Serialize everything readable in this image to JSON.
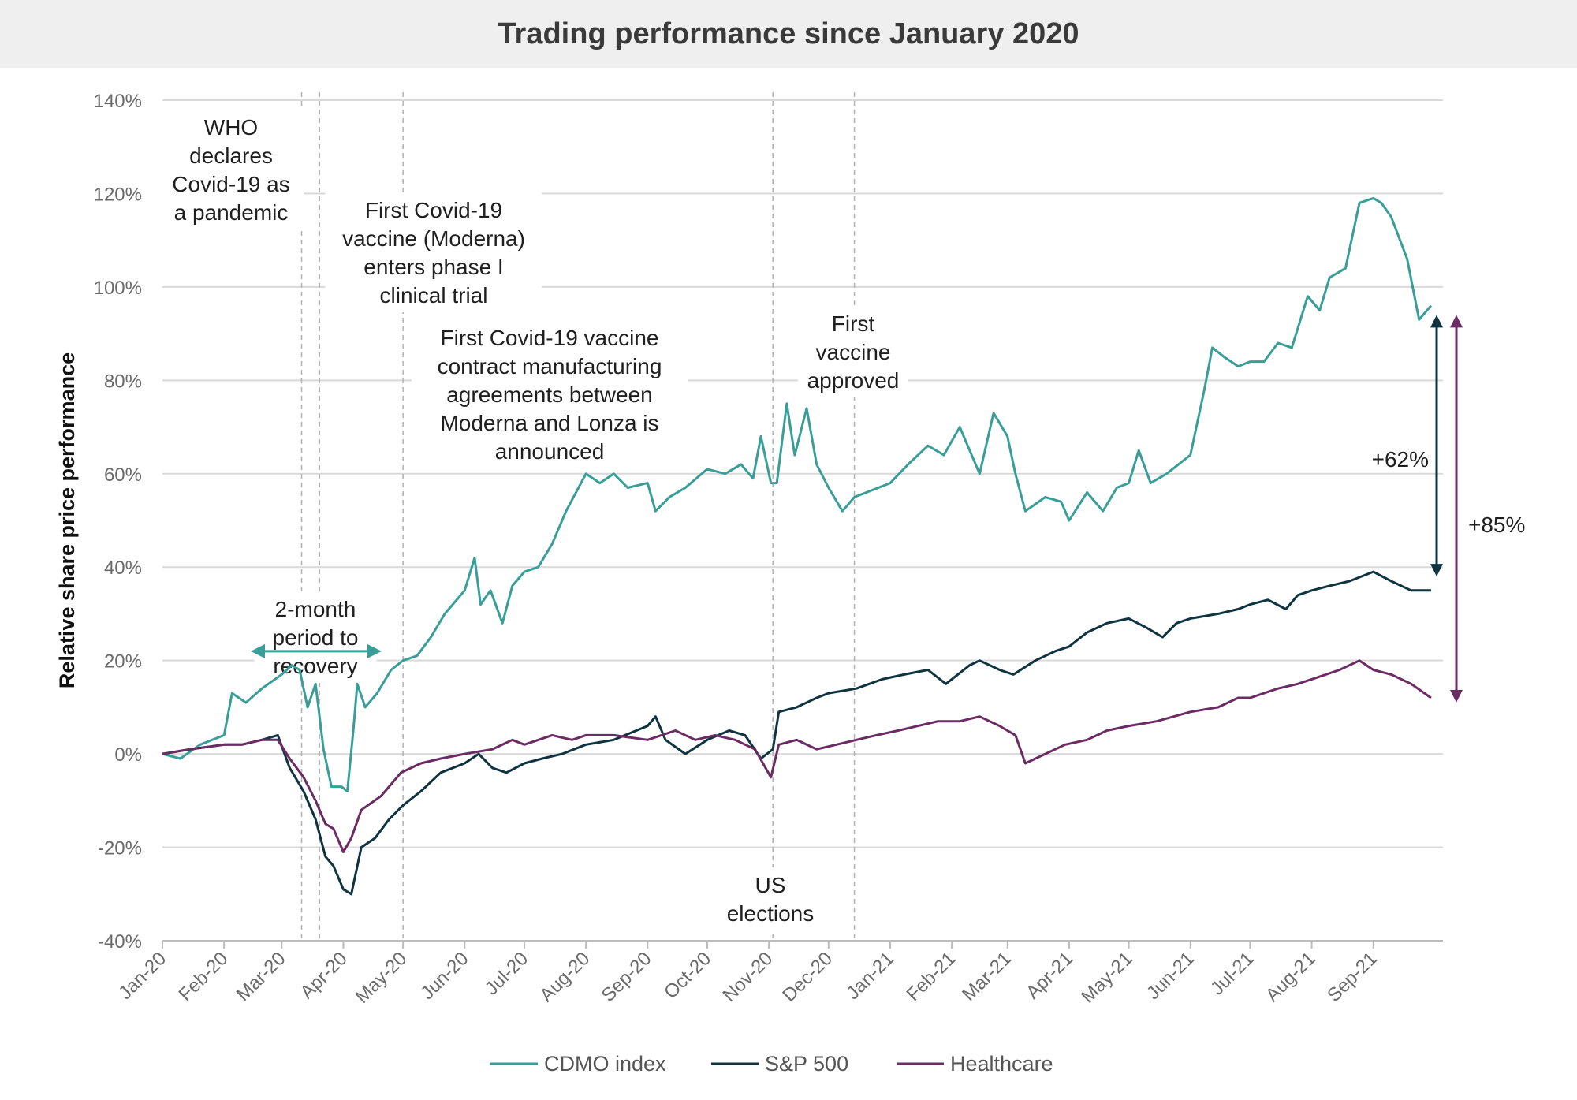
{
  "colors": {
    "cdmo": "#3a9e98",
    "sp500": "#0f3440",
    "healthcare": "#6b2b63",
    "recovery": "#1aa3c7",
    "grid": "#d9d9d9",
    "vline": "#b5b5b5"
  },
  "chart_data": {
    "type": "line",
    "title": "Trading performance since January 2020",
    "ylabel": "Relative share price performance",
    "xlabel": "",
    "ylim": [
      -40,
      140
    ],
    "xlim": [
      "2020-01-01",
      "2021-10-06"
    ],
    "grid": true,
    "legend_position": "bottom",
    "y_ticks": [
      "-40%",
      "-20%",
      "0%",
      "20%",
      "40%",
      "60%",
      "80%",
      "100%",
      "120%",
      "140%"
    ],
    "x_ticks": [
      "Jan-20",
      "Feb-20",
      "Mar-20",
      "Apr-20",
      "May-20",
      "Jun-20",
      "Jul-20",
      "Aug-20",
      "Sep-20",
      "Oct-20",
      "Nov-20",
      "Dec-20",
      "Jan-21",
      "Feb-21",
      "Mar-21",
      "Apr-21",
      "May-21",
      "Jun-21",
      "Jul-21",
      "Aug-21",
      "Sep-21"
    ],
    "event_dates": [
      "2020-03-11",
      "2020-03-20",
      "2020-05-01",
      "2020-11-03",
      "2020-12-14"
    ],
    "series": [
      {
        "name": "CDMO index",
        "color": "#3a9e98",
        "points": [
          [
            "2020-01-01",
            0
          ],
          [
            "2020-01-10",
            -1
          ],
          [
            "2020-01-20",
            2
          ],
          [
            "2020-02-01",
            4
          ],
          [
            "2020-02-05",
            13
          ],
          [
            "2020-02-12",
            11
          ],
          [
            "2020-02-20",
            14
          ],
          [
            "2020-03-01",
            17
          ],
          [
            "2020-03-06",
            19
          ],
          [
            "2020-03-10",
            18
          ],
          [
            "2020-03-14",
            10
          ],
          [
            "2020-03-18",
            15
          ],
          [
            "2020-03-22",
            1
          ],
          [
            "2020-03-26",
            -7
          ],
          [
            "2020-03-31",
            -7
          ],
          [
            "2020-04-03",
            -8
          ],
          [
            "2020-04-06",
            5
          ],
          [
            "2020-04-08",
            15
          ],
          [
            "2020-04-12",
            10
          ],
          [
            "2020-04-18",
            13
          ],
          [
            "2020-04-25",
            18
          ],
          [
            "2020-05-01",
            20
          ],
          [
            "2020-05-08",
            21
          ],
          [
            "2020-05-15",
            25
          ],
          [
            "2020-05-22",
            30
          ],
          [
            "2020-06-01",
            35
          ],
          [
            "2020-06-06",
            42
          ],
          [
            "2020-06-09",
            32
          ],
          [
            "2020-06-14",
            35
          ],
          [
            "2020-06-20",
            28
          ],
          [
            "2020-06-25",
            36
          ],
          [
            "2020-07-01",
            39
          ],
          [
            "2020-07-08",
            40
          ],
          [
            "2020-07-15",
            45
          ],
          [
            "2020-07-22",
            52
          ],
          [
            "2020-08-01",
            60
          ],
          [
            "2020-08-08",
            58
          ],
          [
            "2020-08-15",
            60
          ],
          [
            "2020-08-22",
            57
          ],
          [
            "2020-09-01",
            58
          ],
          [
            "2020-09-05",
            52
          ],
          [
            "2020-09-12",
            55
          ],
          [
            "2020-09-20",
            57
          ],
          [
            "2020-10-01",
            61
          ],
          [
            "2020-10-10",
            60
          ],
          [
            "2020-10-18",
            62
          ],
          [
            "2020-10-24",
            59
          ],
          [
            "2020-10-28",
            68
          ],
          [
            "2020-11-02",
            58
          ],
          [
            "2020-11-05",
            58
          ],
          [
            "2020-11-10",
            75
          ],
          [
            "2020-11-14",
            64
          ],
          [
            "2020-11-20",
            74
          ],
          [
            "2020-11-25",
            62
          ],
          [
            "2020-12-01",
            57
          ],
          [
            "2020-12-08",
            52
          ],
          [
            "2020-12-14",
            55
          ],
          [
            "2020-12-20",
            56
          ],
          [
            "2021-01-01",
            58
          ],
          [
            "2021-01-10",
            62
          ],
          [
            "2021-01-20",
            66
          ],
          [
            "2021-01-28",
            64
          ],
          [
            "2021-02-05",
            70
          ],
          [
            "2021-02-10",
            65
          ],
          [
            "2021-02-15",
            60
          ],
          [
            "2021-02-22",
            73
          ],
          [
            "2021-03-01",
            68
          ],
          [
            "2021-03-05",
            60
          ],
          [
            "2021-03-10",
            52
          ],
          [
            "2021-03-20",
            55
          ],
          [
            "2021-03-28",
            54
          ],
          [
            "2021-04-01",
            50
          ],
          [
            "2021-04-10",
            56
          ],
          [
            "2021-04-18",
            52
          ],
          [
            "2021-04-25",
            57
          ],
          [
            "2021-05-01",
            58
          ],
          [
            "2021-05-06",
            65
          ],
          [
            "2021-05-12",
            58
          ],
          [
            "2021-05-20",
            60
          ],
          [
            "2021-06-01",
            64
          ],
          [
            "2021-06-08",
            78
          ],
          [
            "2021-06-12",
            87
          ],
          [
            "2021-06-18",
            85
          ],
          [
            "2021-06-25",
            83
          ],
          [
            "2021-07-01",
            84
          ],
          [
            "2021-07-08",
            84
          ],
          [
            "2021-07-15",
            88
          ],
          [
            "2021-07-22",
            87
          ],
          [
            "2021-07-30",
            98
          ],
          [
            "2021-08-05",
            95
          ],
          [
            "2021-08-10",
            102
          ],
          [
            "2021-08-18",
            104
          ],
          [
            "2021-08-25",
            118
          ],
          [
            "2021-09-01",
            119
          ],
          [
            "2021-09-05",
            118
          ],
          [
            "2021-09-10",
            115
          ],
          [
            "2021-09-18",
            106
          ],
          [
            "2021-09-24",
            93
          ],
          [
            "2021-09-30",
            96
          ]
        ]
      },
      {
        "name": "S&P 500",
        "color": "#0f3440",
        "points": [
          [
            "2020-01-01",
            0
          ],
          [
            "2020-01-15",
            1
          ],
          [
            "2020-02-01",
            2
          ],
          [
            "2020-02-10",
            2
          ],
          [
            "2020-02-20",
            3
          ],
          [
            "2020-02-28",
            4
          ],
          [
            "2020-03-05",
            -3
          ],
          [
            "2020-03-12",
            -8
          ],
          [
            "2020-03-18",
            -14
          ],
          [
            "2020-03-23",
            -22
          ],
          [
            "2020-03-27",
            -24
          ],
          [
            "2020-04-01",
            -29
          ],
          [
            "2020-04-05",
            -30
          ],
          [
            "2020-04-10",
            -20
          ],
          [
            "2020-04-17",
            -18
          ],
          [
            "2020-04-24",
            -14
          ],
          [
            "2020-05-01",
            -11
          ],
          [
            "2020-05-10",
            -8
          ],
          [
            "2020-05-20",
            -4
          ],
          [
            "2020-06-01",
            -2
          ],
          [
            "2020-06-08",
            0
          ],
          [
            "2020-06-15",
            -3
          ],
          [
            "2020-06-22",
            -4
          ],
          [
            "2020-07-01",
            -2
          ],
          [
            "2020-07-10",
            -1
          ],
          [
            "2020-07-20",
            0
          ],
          [
            "2020-08-01",
            2
          ],
          [
            "2020-08-15",
            3
          ],
          [
            "2020-09-01",
            6
          ],
          [
            "2020-09-05",
            8
          ],
          [
            "2020-09-10",
            3
          ],
          [
            "2020-09-20",
            0
          ],
          [
            "2020-10-01",
            3
          ],
          [
            "2020-10-12",
            5
          ],
          [
            "2020-10-20",
            4
          ],
          [
            "2020-10-28",
            -1
          ],
          [
            "2020-11-03",
            1
          ],
          [
            "2020-11-06",
            9
          ],
          [
            "2020-11-15",
            10
          ],
          [
            "2020-11-25",
            12
          ],
          [
            "2020-12-01",
            13
          ],
          [
            "2020-12-15",
            14
          ],
          [
            "2020-12-28",
            16
          ],
          [
            "2021-01-08",
            17
          ],
          [
            "2021-01-20",
            18
          ],
          [
            "2021-01-29",
            15
          ],
          [
            "2021-02-10",
            19
          ],
          [
            "2021-02-15",
            20
          ],
          [
            "2021-02-25",
            18
          ],
          [
            "2021-03-04",
            17
          ],
          [
            "2021-03-15",
            20
          ],
          [
            "2021-03-25",
            22
          ],
          [
            "2021-04-01",
            23
          ],
          [
            "2021-04-10",
            26
          ],
          [
            "2021-04-20",
            28
          ],
          [
            "2021-05-01",
            29
          ],
          [
            "2021-05-10",
            27
          ],
          [
            "2021-05-18",
            25
          ],
          [
            "2021-05-25",
            28
          ],
          [
            "2021-06-01",
            29
          ],
          [
            "2021-06-15",
            30
          ],
          [
            "2021-06-25",
            31
          ],
          [
            "2021-07-01",
            32
          ],
          [
            "2021-07-10",
            33
          ],
          [
            "2021-07-19",
            31
          ],
          [
            "2021-07-25",
            34
          ],
          [
            "2021-08-01",
            35
          ],
          [
            "2021-08-10",
            36
          ],
          [
            "2021-08-20",
            37
          ],
          [
            "2021-09-01",
            39
          ],
          [
            "2021-09-10",
            37
          ],
          [
            "2021-09-20",
            35
          ],
          [
            "2021-09-30",
            35
          ]
        ]
      },
      {
        "name": "Healthcare",
        "color": "#6b2b63",
        "points": [
          [
            "2020-01-01",
            0
          ],
          [
            "2020-01-15",
            1
          ],
          [
            "2020-02-01",
            2
          ],
          [
            "2020-02-10",
            2
          ],
          [
            "2020-02-20",
            3
          ],
          [
            "2020-02-28",
            3
          ],
          [
            "2020-03-05",
            -1
          ],
          [
            "2020-03-12",
            -5
          ],
          [
            "2020-03-18",
            -10
          ],
          [
            "2020-03-23",
            -15
          ],
          [
            "2020-03-27",
            -16
          ],
          [
            "2020-04-01",
            -21
          ],
          [
            "2020-04-05",
            -18
          ],
          [
            "2020-04-10",
            -12
          ],
          [
            "2020-04-20",
            -9
          ],
          [
            "2020-04-30",
            -4
          ],
          [
            "2020-05-10",
            -2
          ],
          [
            "2020-05-20",
            -1
          ],
          [
            "2020-06-01",
            0
          ],
          [
            "2020-06-15",
            1
          ],
          [
            "2020-06-25",
            3
          ],
          [
            "2020-07-01",
            2
          ],
          [
            "2020-07-15",
            4
          ],
          [
            "2020-07-25",
            3
          ],
          [
            "2020-08-01",
            4
          ],
          [
            "2020-08-15",
            4
          ],
          [
            "2020-09-01",
            3
          ],
          [
            "2020-09-15",
            5
          ],
          [
            "2020-09-25",
            3
          ],
          [
            "2020-10-05",
            4
          ],
          [
            "2020-10-15",
            3
          ],
          [
            "2020-10-25",
            1
          ],
          [
            "2020-11-02",
            -5
          ],
          [
            "2020-11-06",
            2
          ],
          [
            "2020-11-15",
            3
          ],
          [
            "2020-11-25",
            1
          ],
          [
            "2020-12-05",
            2
          ],
          [
            "2020-12-15",
            3
          ],
          [
            "2020-12-25",
            4
          ],
          [
            "2021-01-05",
            5
          ],
          [
            "2021-01-15",
            6
          ],
          [
            "2021-01-25",
            7
          ],
          [
            "2021-02-05",
            7
          ],
          [
            "2021-02-15",
            8
          ],
          [
            "2021-02-25",
            6
          ],
          [
            "2021-03-05",
            4
          ],
          [
            "2021-03-10",
            -2
          ],
          [
            "2021-03-20",
            0
          ],
          [
            "2021-03-30",
            2
          ],
          [
            "2021-04-10",
            3
          ],
          [
            "2021-04-20",
            5
          ],
          [
            "2021-05-01",
            6
          ],
          [
            "2021-05-15",
            7
          ],
          [
            "2021-06-01",
            9
          ],
          [
            "2021-06-15",
            10
          ],
          [
            "2021-06-25",
            12
          ],
          [
            "2021-07-01",
            12
          ],
          [
            "2021-07-15",
            14
          ],
          [
            "2021-07-25",
            15
          ],
          [
            "2021-08-01",
            16
          ],
          [
            "2021-08-15",
            18
          ],
          [
            "2021-08-25",
            20
          ],
          [
            "2021-09-01",
            18
          ],
          [
            "2021-09-10",
            17
          ],
          [
            "2021-09-20",
            15
          ],
          [
            "2021-09-30",
            12
          ]
        ]
      }
    ],
    "annotations": {
      "who": [
        "WHO",
        "declares",
        "Covid-19 as",
        "a pandemic"
      ],
      "moderna_trial": [
        "First Covid-19",
        "vaccine (Moderna)",
        "enters phase I",
        "clinical trial"
      ],
      "lonza": [
        "First Covid-19 vaccine",
        "contract manufacturing",
        "agreements between",
        "Moderna and Lonza is",
        "announced"
      ],
      "first_vaccine": [
        "First",
        "vaccine",
        "approved"
      ],
      "us_elections": [
        "US",
        "elections"
      ],
      "recovery": [
        "2-month",
        "period to",
        "recovery"
      ],
      "gap_sp500": "+62%",
      "gap_healthcare": "+85%"
    }
  }
}
